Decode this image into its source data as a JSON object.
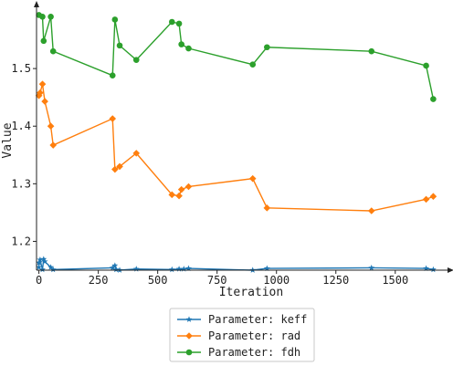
{
  "chart_data": {
    "type": "line",
    "xlabel": "Iteration",
    "ylabel": "Value",
    "xlim": [
      -10,
      1720
    ],
    "ylim": [
      1.15,
      1.6
    ],
    "x_ticks": [
      0,
      250,
      500,
      750,
      1000,
      1250,
      1500
    ],
    "y_ticks": [
      1.2,
      1.3,
      1.4,
      1.5
    ],
    "y_tick_labels": [
      "1.2",
      "1.3",
      "1.4",
      "1.5"
    ],
    "grid": false,
    "legend_position": "bottom-center",
    "series": [
      {
        "name": "Parameter: keff",
        "color": "#1f77b4",
        "marker": "star",
        "x": [
          0,
          0,
          5,
          15,
          20,
          25,
          50,
          60,
          310,
          320,
          325,
          340,
          410,
          560,
          590,
          610,
          630,
          900,
          960,
          1400,
          1630,
          1660
        ],
        "y": [
          1.155,
          1.163,
          1.168,
          1.151,
          1.169,
          1.165,
          1.155,
          1.151,
          1.154,
          1.158,
          1.151,
          1.15,
          1.152,
          1.151,
          1.152,
          1.152,
          1.153,
          1.15,
          1.153,
          1.154,
          1.153,
          1.151
        ]
      },
      {
        "name": "Parameter: rad",
        "color": "#ff7f0e",
        "marker": "diamond",
        "x": [
          0,
          5,
          15,
          25,
          50,
          60,
          310,
          320,
          340,
          410,
          560,
          590,
          600,
          630,
          900,
          960,
          1400,
          1630,
          1660
        ],
        "y": [
          1.453,
          1.458,
          1.473,
          1.443,
          1.4,
          1.367,
          1.413,
          1.325,
          1.33,
          1.353,
          1.281,
          1.279,
          1.29,
          1.295,
          1.309,
          1.258,
          1.253,
          1.273,
          1.278
        ]
      },
      {
        "name": "Parameter: fdh",
        "color": "#2ca02c",
        "marker": "circle",
        "x": [
          0,
          15,
          20,
          50,
          60,
          310,
          320,
          340,
          410,
          560,
          590,
          600,
          630,
          900,
          960,
          1400,
          1630,
          1660
        ],
        "y": [
          1.593,
          1.59,
          1.548,
          1.59,
          1.53,
          1.488,
          1.585,
          1.54,
          1.515,
          1.581,
          1.578,
          1.542,
          1.535,
          1.507,
          1.537,
          1.53,
          1.505,
          1.447
        ]
      }
    ]
  }
}
